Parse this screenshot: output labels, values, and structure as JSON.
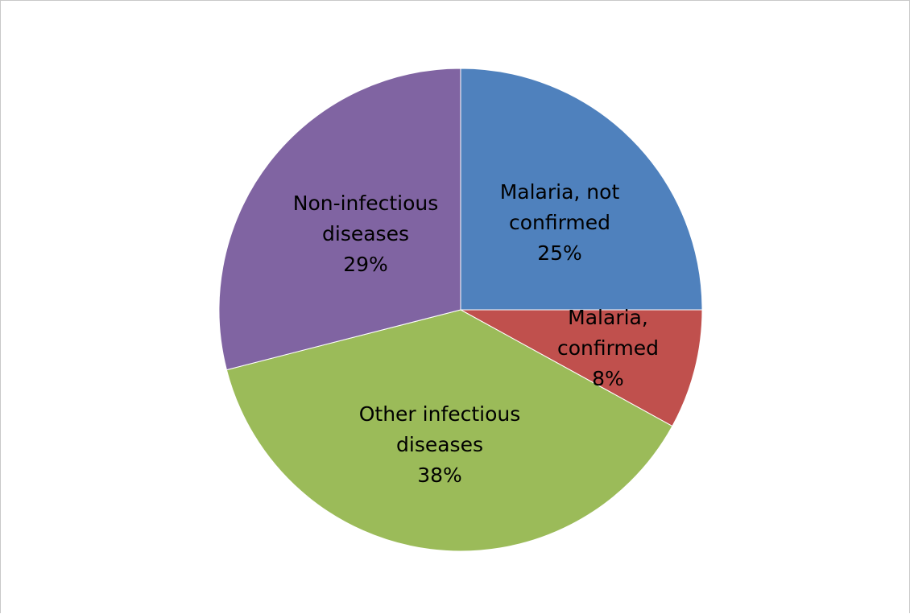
{
  "chart_data": {
    "type": "pie",
    "title": "",
    "legend": "none",
    "slices": [
      {
        "label_lines": [
          "Malaria, not",
          "confirmed"
        ],
        "percent_label": "25%",
        "value": 25,
        "color": "#4F81BD"
      },
      {
        "label_lines": [
          "Malaria,",
          "confirmed"
        ],
        "percent_label": "8%",
        "value": 8,
        "color": "#C0504D"
      },
      {
        "label_lines": [
          "Other infectious",
          "diseases"
        ],
        "percent_label": "38%",
        "value": 38,
        "color": "#9BBB59"
      },
      {
        "label_lines": [
          "Non-infectious",
          "diseases"
        ],
        "percent_label": "29%",
        "value": 29,
        "color": "#8064A2"
      }
    ]
  }
}
